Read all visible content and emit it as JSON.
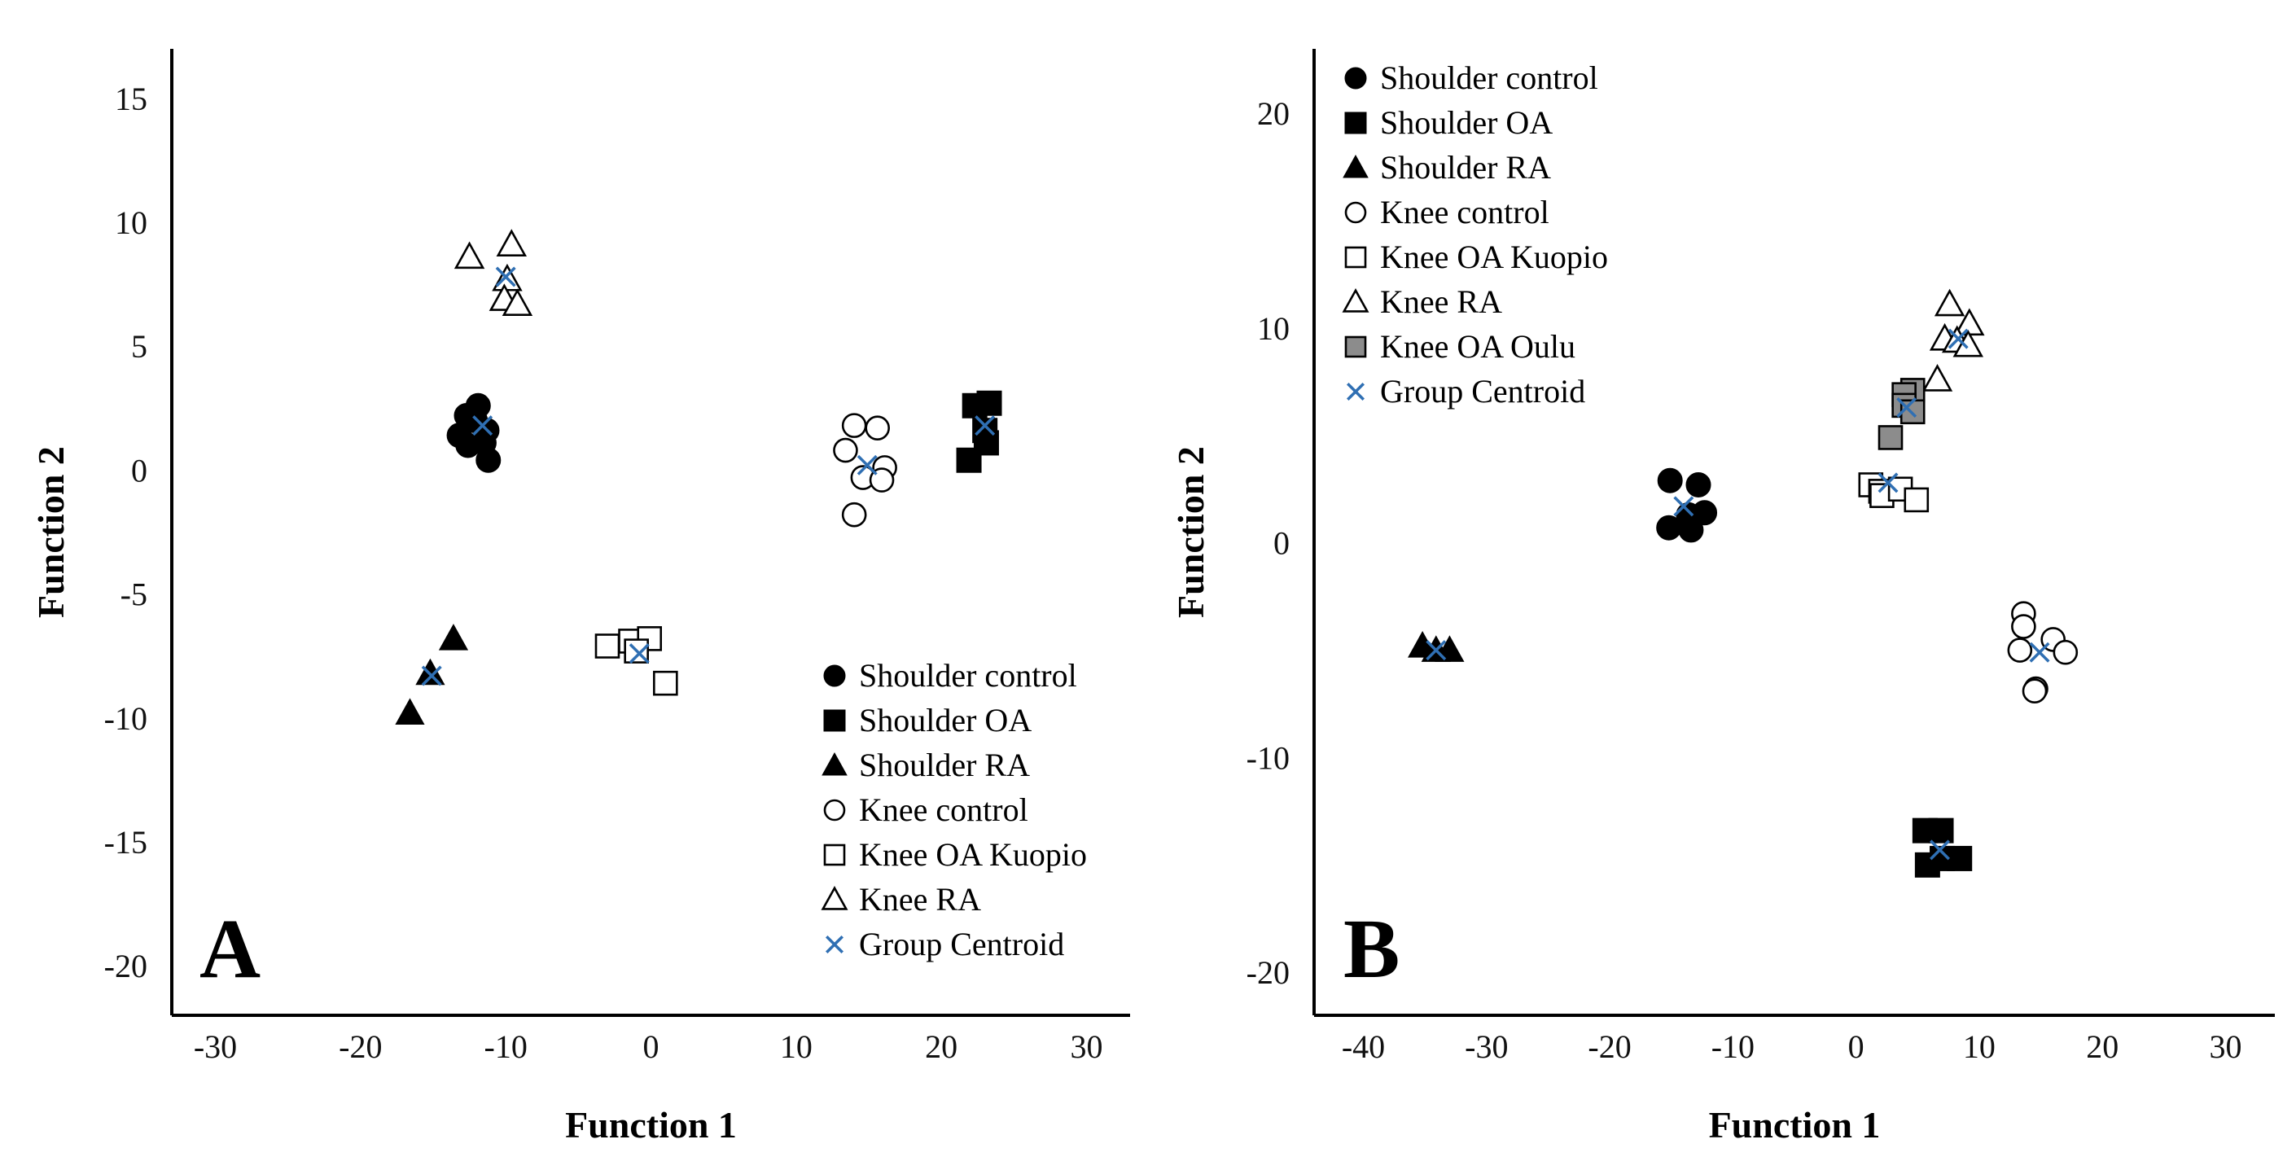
{
  "chart_data": [
    {
      "type": "scatter",
      "panel_label": "A",
      "xlabel": "Function 1",
      "ylabel": "Function 2",
      "xlim": [
        -33,
        33
      ],
      "ylim": [
        -22,
        17
      ],
      "xticks": [
        "-30",
        "-20",
        "-10",
        "0",
        "10",
        "20",
        "30"
      ],
      "xtick_values": [
        -30,
        -20,
        -10,
        0,
        10,
        20,
        30
      ],
      "yticks": [
        "15",
        "10",
        "5",
        "0",
        "-5",
        "-10",
        "-15",
        "-20"
      ],
      "ytick_values": [
        15,
        10,
        5,
        0,
        -5,
        -10,
        -15,
        -20
      ],
      "legend_position": "bottom-right",
      "legend": [
        {
          "label": "Shoulder control",
          "marker": "circle-filled"
        },
        {
          "label": "Shoulder OA",
          "marker": "square-filled"
        },
        {
          "label": "Shoulder RA",
          "marker": "triangle-filled"
        },
        {
          "label": "Knee control",
          "marker": "circle-open"
        },
        {
          "label": "Knee OA Kuopio",
          "marker": "square-open"
        },
        {
          "label": "Knee RA",
          "marker": "triangle-open"
        },
        {
          "label": "Group Centroid",
          "marker": "cross"
        }
      ],
      "series": [
        {
          "name": "Shoulder control",
          "marker": "circle-filled",
          "points": [
            [
              -12.7,
              2.2
            ],
            [
              -11.9,
              2.6
            ],
            [
              -13.2,
              1.4
            ],
            [
              -11.3,
              1.6
            ],
            [
              -12.6,
              1.0
            ],
            [
              -11.5,
              1.1
            ],
            [
              -12.1,
              2.0
            ],
            [
              -11.2,
              0.4
            ]
          ]
        },
        {
          "name": "Shoulder OA",
          "marker": "square-filled",
          "points": [
            [
              22.3,
              2.6
            ],
            [
              23.3,
              2.7
            ],
            [
              23.0,
              1.6
            ],
            [
              23.1,
              1.1
            ],
            [
              21.9,
              0.4
            ]
          ]
        },
        {
          "name": "Shoulder RA",
          "marker": "triangle-filled",
          "points": [
            [
              -13.6,
              -6.8
            ],
            [
              -15.2,
              -8.2
            ],
            [
              -16.6,
              -9.8
            ]
          ]
        },
        {
          "name": "Knee control",
          "marker": "circle-open",
          "points": [
            [
              14.0,
              1.8
            ],
            [
              15.6,
              1.7
            ],
            [
              13.4,
              0.8
            ],
            [
              16.1,
              0.1
            ],
            [
              14.6,
              -0.3
            ],
            [
              15.9,
              -0.4
            ],
            [
              14.0,
              -1.8
            ]
          ]
        },
        {
          "name": "Knee OA Kuopio",
          "marker": "square-open",
          "points": [
            [
              -3.0,
              -7.1
            ],
            [
              -1.4,
              -6.9
            ],
            [
              -0.1,
              -6.8
            ],
            [
              -1.0,
              -7.3
            ],
            [
              1.0,
              -8.6
            ]
          ]
        },
        {
          "name": "Knee RA",
          "marker": "triangle-open",
          "points": [
            [
              -12.5,
              8.6
            ],
            [
              -9.6,
              9.1
            ],
            [
              -9.9,
              7.7
            ],
            [
              -10.1,
              6.9
            ],
            [
              -9.2,
              6.7
            ]
          ]
        },
        {
          "name": "Group Centroid",
          "marker": "cross",
          "points": [
            [
              -11.6,
              1.8
            ],
            [
              23.0,
              1.8
            ],
            [
              -15.1,
              -8.3
            ],
            [
              14.9,
              0.2
            ],
            [
              -0.8,
              -7.4
            ],
            [
              -10.0,
              7.8
            ]
          ]
        }
      ]
    },
    {
      "type": "scatter",
      "panel_label": "B",
      "xlabel": "Function 1",
      "ylabel": "Function 2",
      "xlim": [
        -44,
        34
      ],
      "ylim": [
        -22,
        23
      ],
      "xticks": [
        "-40",
        "-30",
        "-20",
        "-10",
        "0",
        "10",
        "20",
        "30"
      ],
      "xtick_values": [
        -40,
        -30,
        -20,
        -10,
        0,
        10,
        20,
        30
      ],
      "yticks": [
        "20",
        "10",
        "0",
        "-10",
        "-20"
      ],
      "ytick_values": [
        20,
        10,
        0,
        -10,
        -20
      ],
      "legend_position": "top-left",
      "legend": [
        {
          "label": "Shoulder control",
          "marker": "circle-filled"
        },
        {
          "label": "Shoulder OA",
          "marker": "square-filled"
        },
        {
          "label": "Shoulder RA",
          "marker": "triangle-filled"
        },
        {
          "label": "Knee control",
          "marker": "circle-open"
        },
        {
          "label": "Knee OA Kuopio",
          "marker": "square-open"
        },
        {
          "label": "Knee RA",
          "marker": "triangle-open"
        },
        {
          "label": "Knee OA Oulu",
          "marker": "square-gray"
        },
        {
          "label": "Group Centroid",
          "marker": "cross"
        }
      ],
      "series": [
        {
          "name": "Shoulder control",
          "marker": "circle-filled",
          "points": [
            [
              -15.1,
              2.9
            ],
            [
              -12.8,
              2.7
            ],
            [
              -13.6,
              1.3
            ],
            [
              -12.3,
              1.4
            ],
            [
              -15.2,
              0.7
            ],
            [
              -13.4,
              0.6
            ]
          ]
        },
        {
          "name": "Shoulder OA",
          "marker": "square-filled",
          "points": [
            [
              5.6,
              -13.4
            ],
            [
              6.9,
              -13.4
            ],
            [
              7.0,
              -14.7
            ],
            [
              8.4,
              -14.7
            ],
            [
              5.8,
              -15.0
            ]
          ]
        },
        {
          "name": "Shoulder RA",
          "marker": "triangle-filled",
          "points": [
            [
              -35.2,
              -4.8
            ],
            [
              -34.1,
              -5.0
            ],
            [
              -33.0,
              -5.0
            ]
          ]
        },
        {
          "name": "Knee control",
          "marker": "circle-open",
          "points": [
            [
              13.6,
              -3.3
            ],
            [
              13.6,
              -3.9
            ],
            [
              16.0,
              -4.5
            ],
            [
              13.3,
              -5.0
            ],
            [
              17.0,
              -5.1
            ],
            [
              14.6,
              -6.8
            ],
            [
              14.5,
              -6.9
            ]
          ]
        },
        {
          "name": "Knee OA Kuopio",
          "marker": "square-open",
          "points": [
            [
              1.2,
              2.7
            ],
            [
              2.0,
              2.4
            ],
            [
              2.1,
              2.2
            ],
            [
              3.6,
              2.5
            ],
            [
              4.9,
              2.0
            ]
          ]
        },
        {
          "name": "Knee RA",
          "marker": "triangle-open",
          "points": [
            [
              7.6,
              11.1
            ],
            [
              9.2,
              10.2
            ],
            [
              7.2,
              9.5
            ],
            [
              8.2,
              9.4
            ],
            [
              9.1,
              9.2
            ],
            [
              6.6,
              7.6
            ]
          ]
        },
        {
          "name": "Knee OA Oulu",
          "marker": "square-gray",
          "points": [
            [
              4.6,
              7.1
            ],
            [
              3.9,
              6.9
            ],
            [
              3.9,
              6.4
            ],
            [
              4.6,
              6.1
            ],
            [
              2.8,
              4.9
            ]
          ]
        },
        {
          "name": "Group Centroid",
          "marker": "cross",
          "points": [
            [
              -14.0,
              1.7
            ],
            [
              6.8,
              -14.3
            ],
            [
              -34.1,
              -5.0
            ],
            [
              14.9,
              -5.1
            ],
            [
              2.6,
              2.8
            ],
            [
              8.3,
              9.5
            ],
            [
              4.1,
              6.3
            ]
          ]
        }
      ]
    }
  ]
}
